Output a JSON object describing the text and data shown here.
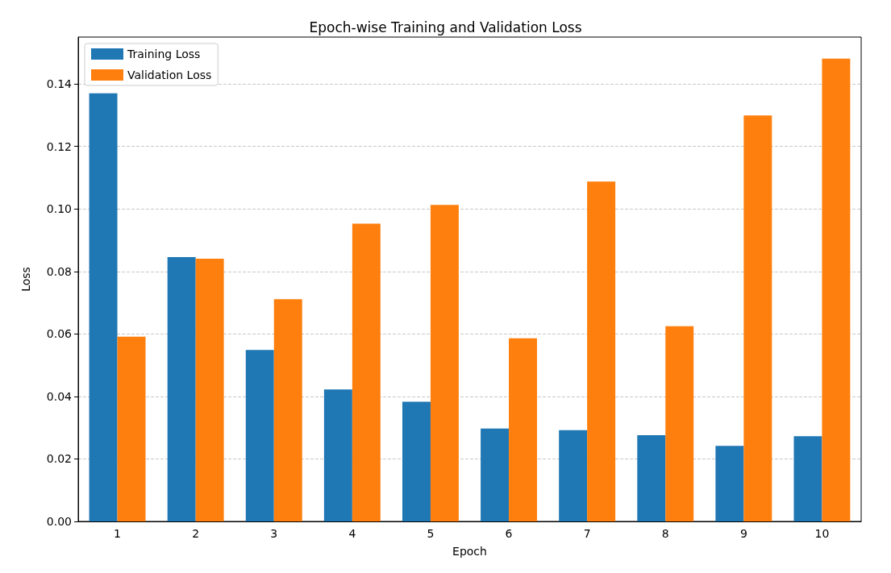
{
  "chart_data": {
    "type": "bar",
    "title": "Epoch-wise Training and Validation Loss",
    "xlabel": "Epoch",
    "ylabel": "Loss",
    "categories": [
      "1",
      "2",
      "3",
      "4",
      "5",
      "6",
      "7",
      "8",
      "9",
      "10"
    ],
    "series": [
      {
        "name": "Training Loss",
        "color": "#1f77b4",
        "values": [
          0.137,
          0.0846,
          0.0549,
          0.0422,
          0.0383,
          0.0297,
          0.0292,
          0.0276,
          0.0242,
          0.0273
        ]
      },
      {
        "name": "Validation Loss",
        "color": "#ff7f0e",
        "values": [
          0.0591,
          0.0841,
          0.0711,
          0.0953,
          0.1013,
          0.0586,
          0.1088,
          0.0625,
          0.1299,
          0.1481
        ]
      }
    ],
    "ylim": [
      0,
      0.155
    ],
    "yticks": [
      {
        "value": 0,
        "label": "0.00"
      },
      0.02,
      0.04,
      0.06,
      0.08,
      {
        "value": 0.1,
        "label": "0.10"
      },
      0.12,
      0.14
    ],
    "grid": "y",
    "legend": "top left"
  }
}
